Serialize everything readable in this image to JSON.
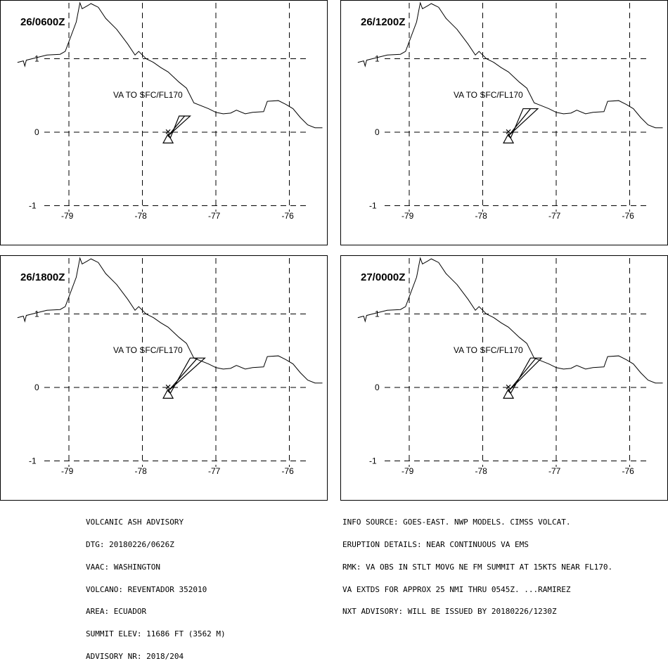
{
  "panels": [
    {
      "time": "26/0600Z",
      "label": "VA TO SFC/FL170",
      "plume": [
        [
          -77.65,
          -0.05
        ],
        [
          -77.35,
          0.22
        ],
        [
          -77.5,
          0.22
        ],
        [
          -77.62,
          -0.08
        ]
      ]
    },
    {
      "time": "26/1200Z",
      "label": "VA TO SFC/FL170",
      "plume": [
        [
          -77.65,
          -0.05
        ],
        [
          -77.25,
          0.32
        ],
        [
          -77.45,
          0.32
        ],
        [
          -77.62,
          -0.08
        ]
      ]
    },
    {
      "time": "26/1800Z",
      "label": "VA TO SFC/FL170",
      "plume": [
        [
          -77.65,
          -0.05
        ],
        [
          -77.15,
          0.4
        ],
        [
          -77.35,
          0.4
        ],
        [
          -77.62,
          -0.08
        ]
      ]
    },
    {
      "time": "27/0000Z",
      "label": "VA TO SFC/FL170",
      "plume": [
        [
          -77.65,
          -0.05
        ],
        [
          -77.2,
          0.4
        ],
        [
          -77.35,
          0.4
        ],
        [
          -77.62,
          -0.08
        ]
      ]
    }
  ],
  "axes": {
    "lon_ticks": [
      "-79",
      "-78",
      "-77",
      "-76"
    ],
    "lat_ticks": [
      "1",
      "0",
      "-1"
    ],
    "lon_values": [
      -79,
      -78,
      -77,
      -76
    ],
    "lat_values": [
      1,
      0,
      -1
    ]
  },
  "volcano": {
    "name": "REVENTADOR",
    "lon": -77.65,
    "lat": -0.08
  },
  "coastline": [
    [
      -79.7,
      0.95
    ],
    [
      -79.62,
      0.97
    ],
    [
      -79.6,
      0.9
    ],
    [
      -79.58,
      0.98
    ],
    [
      -79.5,
      1.0
    ],
    [
      -79.3,
      1.05
    ],
    [
      -79.12,
      1.06
    ],
    [
      -79.05,
      1.1
    ],
    [
      -78.9,
      1.5
    ],
    [
      -78.85,
      1.76
    ],
    [
      -78.82,
      1.68
    ],
    [
      -78.75,
      1.72
    ],
    [
      -78.7,
      1.75
    ],
    [
      -78.6,
      1.7
    ],
    [
      -78.5,
      1.55
    ],
    [
      -78.35,
      1.4
    ],
    [
      -78.2,
      1.2
    ],
    [
      -78.1,
      1.05
    ],
    [
      -78.05,
      1.1
    ],
    [
      -77.95,
      1.0
    ],
    [
      -77.85,
      0.95
    ],
    [
      -77.75,
      0.88
    ],
    [
      -77.65,
      0.82
    ],
    [
      -77.5,
      0.68
    ],
    [
      -77.4,
      0.6
    ],
    [
      -77.3,
      0.4
    ],
    [
      -77.1,
      0.32
    ],
    [
      -77.0,
      0.27
    ],
    [
      -76.9,
      0.25
    ],
    [
      -76.8,
      0.26
    ],
    [
      -76.72,
      0.3
    ],
    [
      -76.6,
      0.25
    ],
    [
      -76.5,
      0.27
    ],
    [
      -76.35,
      0.28
    ],
    [
      -76.3,
      0.42
    ],
    [
      -76.15,
      0.43
    ],
    [
      -76.05,
      0.38
    ],
    [
      -75.95,
      0.32
    ],
    [
      -75.85,
      0.2
    ],
    [
      -75.75,
      0.1
    ],
    [
      -75.65,
      0.06
    ],
    [
      -75.55,
      0.06
    ]
  ],
  "advisory_left": [
    "VOLCANIC ASH ADVISORY",
    "DTG: 20180226/0626Z",
    "VAAC: WASHINGTON",
    "VOLCANO: REVENTADOR 352010",
    "AREA: ECUADOR",
    "SUMMIT ELEV: 11686 FT (3562 M)",
    "ADVISORY NR: 2018/204"
  ],
  "advisory_right": [
    "INFO SOURCE: GOES-EAST. NWP MODELS. CIMSS VOLCAT.",
    "ERUPTION DETAILS: NEAR CONTINUOUS VA EMS",
    "RMK: VA OBS IN STLT MOVG NE FM SUMMIT AT 15KTS NEAR FL170.",
    "VA EXTDS FOR APPROX 25 NMI THRU 0545Z. ...RAMIREZ",
    "NXT ADVISORY: WILL BE ISSUED BY 20180226/1230Z"
  ]
}
